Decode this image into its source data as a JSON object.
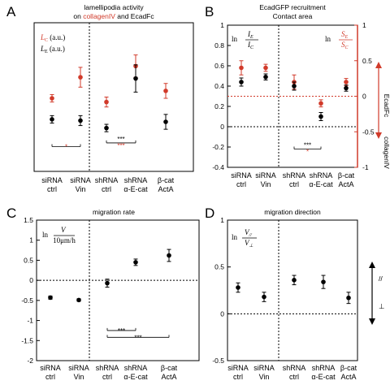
{
  "colors": {
    "red": "#d13a2a",
    "black": "#000000"
  },
  "chart_data": [
    {
      "panel": "A",
      "type": "scatter",
      "title_line1": "lamellipodia activity",
      "title_line2_prefix": "on ",
      "title_line2_red1": "collagenIV",
      "title_line2_mid": " and ",
      "title_line2_black": "EcadFc",
      "categories": [
        "siRNA\nctrl",
        "siRNA\nVin",
        "shRNA\nctrl",
        "shRNA\nα-E-cat",
        "β-cat\nActA"
      ],
      "legend": [
        {
          "label": "L",
          "sub": "C",
          "unit": " (a.u.)",
          "color": "#d13a2a"
        },
        {
          "label": "L",
          "sub": "E",
          "unit": " (a.u.)",
          "color": "#000000"
        }
      ],
      "ylim": [
        0,
        1.2
      ],
      "series": [
        {
          "name": "L_C",
          "color": "#d13a2a",
          "values": [
            0.59,
            0.76,
            0.56,
            0.85,
            0.65
          ],
          "errors": [
            0.03,
            0.08,
            0.04,
            0.09,
            0.06
          ]
        },
        {
          "name": "L_E",
          "color": "#000000",
          "values": [
            0.42,
            0.41,
            0.35,
            0.75,
            0.4
          ],
          "errors": [
            0.03,
            0.04,
            0.03,
            0.11,
            0.06
          ]
        }
      ],
      "significance": [
        {
          "from": 0,
          "to": 1,
          "labels": [
            {
              "text": "*",
              "color": "#d13a2a"
            }
          ],
          "y": 0.2
        },
        {
          "from": 2,
          "to": 3,
          "labels": [
            {
              "text": "***",
              "color": "#000000"
            },
            {
              "text": "***",
              "color": "#d13a2a"
            }
          ],
          "y": 0.23
        }
      ]
    },
    {
      "panel": "B",
      "type": "scatter",
      "title_line1": "EcadGFP recruitment",
      "title_line2": "Contact area",
      "categories": [
        "siRNA\nctrl",
        "siRNA\nVin",
        "shRNA\nctrl",
        "shRNA\nα-E-cat",
        "β-cat\nActA"
      ],
      "ylim": [
        -0.4,
        1.0
      ],
      "yticks": [
        "1",
        "0.8",
        "0.6",
        "0.4",
        "0.2",
        "0",
        "-0.2",
        "-0.4"
      ],
      "ylim_right": [
        -1,
        1
      ],
      "yticks_right": [
        "1",
        "0.5",
        "0",
        "-0.5",
        "-1"
      ],
      "ylabel_right_top": "EcadFc",
      "ylabel_right_bottom": "collagenIV",
      "legend_left": {
        "prefix": "ln",
        "num": "I",
        "num_sub": "E",
        "den": "I",
        "den_sub": "C"
      },
      "legend_right": {
        "prefix": "ln",
        "num": "S",
        "num_sub": "E",
        "den": "S",
        "den_sub": "C"
      },
      "series": [
        {
          "name": "ln IE/IC",
          "color": "#000000",
          "values": [
            0.44,
            0.49,
            0.4,
            0.1,
            0.38
          ],
          "errors": [
            0.04,
            0.03,
            0.04,
            0.04,
            0.03
          ]
        },
        {
          "name": "ln SE/SC",
          "color": "#d13a2a",
          "values_right": [
            0.4,
            0.4,
            0.2,
            -0.1,
            0.2
          ],
          "errors_right": [
            0.1,
            0.05,
            0.1,
            0.05,
            0.05
          ]
        }
      ],
      "significance": [
        {
          "from": 2,
          "to": 3,
          "labels": [
            {
              "text": "***",
              "color": "#000000"
            },
            {
              "text": "*",
              "color": "#d13a2a"
            }
          ],
          "y": -0.22
        }
      ]
    },
    {
      "panel": "C",
      "type": "scatter",
      "title": "migration rate",
      "categories": [
        "siRNA\nctrl",
        "siRNA\nVin",
        "shRNA\nctrl",
        "shRNA\nα-E-cat",
        "β-cat\nActA"
      ],
      "ylim": [
        -2,
        1.5
      ],
      "yticks": [
        "1.5",
        "1",
        "0.5",
        "0",
        "-0.5",
        "-1",
        "-1.5",
        "-2"
      ],
      "legend": {
        "prefix": "ln",
        "num": "V",
        "den": "10μm/h"
      },
      "series": [
        {
          "name": "ln V/10μm/h",
          "color": "#000000",
          "values": [
            -0.43,
            -0.49,
            -0.07,
            0.45,
            0.62
          ],
          "errors": [
            0.04,
            0.03,
            0.1,
            0.08,
            0.15
          ]
        }
      ],
      "significance": [
        {
          "from": 2,
          "to": 3,
          "labels": [
            {
              "text": "***",
              "color": "#000000"
            }
          ],
          "y": -1.25
        },
        {
          "from": 2,
          "to": 4,
          "labels": [
            {
              "text": "***",
              "color": "#000000"
            }
          ],
          "y": -1.42
        }
      ]
    },
    {
      "panel": "D",
      "type": "scatter",
      "title": "migration direction",
      "categories": [
        "siRNA\nctrl",
        "siRNA\nVin",
        "shRNA\nctrl",
        "shRNA\nα-E-cat",
        "β-cat\nActA"
      ],
      "ylim": [
        -0.5,
        1.0
      ],
      "yticks": [
        "1",
        "0.5",
        "0",
        "-0.5"
      ],
      "legend": {
        "prefix": "ln",
        "num": "V",
        "num_sub": "//",
        "den": "V",
        "den_sub": "⊥"
      },
      "right_labels": {
        "top": "//",
        "bottom": "⊥"
      },
      "series": [
        {
          "name": "ln V///V⊥",
          "color": "#000000",
          "values": [
            0.28,
            0.18,
            0.36,
            0.34,
            0.17
          ],
          "errors": [
            0.05,
            0.05,
            0.05,
            0.07,
            0.06
          ]
        }
      ]
    }
  ]
}
